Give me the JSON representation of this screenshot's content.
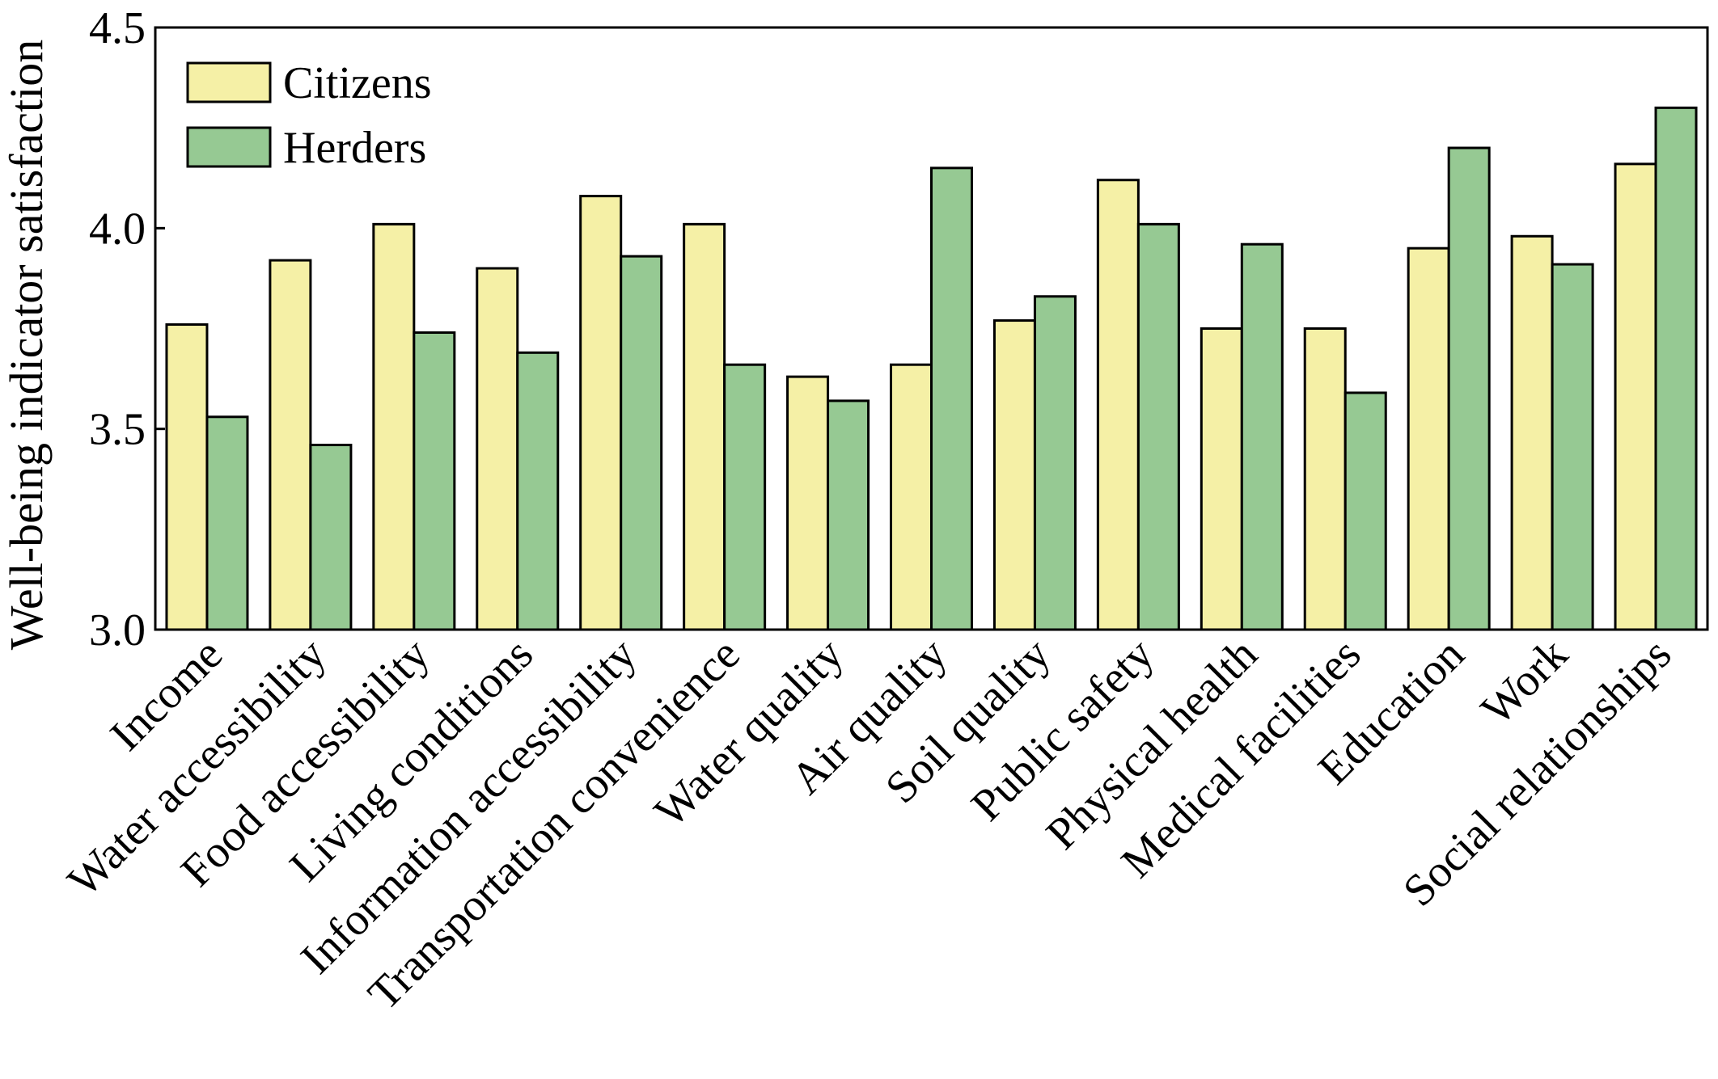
{
  "chart_data": {
    "type": "bar",
    "title": "",
    "xlabel": "",
    "ylabel": "Well-being indicator satisfaction",
    "ylim": [
      3.0,
      4.5
    ],
    "yticks": [
      "3.0",
      "3.5",
      "4.0",
      "4.5"
    ],
    "grid": false,
    "legend_position": "top-left",
    "categories": [
      "Income",
      "Water accessibility",
      "Food accessibility",
      "Living conditions",
      "Information accessibility",
      "Transportation convenience",
      "Water quality",
      "Air quality",
      "Soil quality",
      "Public safety",
      "Physical health",
      "Medical facilities",
      "Education",
      "Work",
      "Social relationships"
    ],
    "series": [
      {
        "name": "Citizens",
        "color": "#F5F0A6",
        "values": [
          3.76,
          3.92,
          4.01,
          3.9,
          4.08,
          4.01,
          3.63,
          3.66,
          3.77,
          4.12,
          3.75,
          3.75,
          3.95,
          3.98,
          4.16
        ]
      },
      {
        "name": "Herders",
        "color": "#96C993",
        "values": [
          3.53,
          3.46,
          3.74,
          3.69,
          3.93,
          3.66,
          3.57,
          4.15,
          3.83,
          4.01,
          3.96,
          3.59,
          4.2,
          3.91,
          4.3
        ]
      }
    ]
  }
}
